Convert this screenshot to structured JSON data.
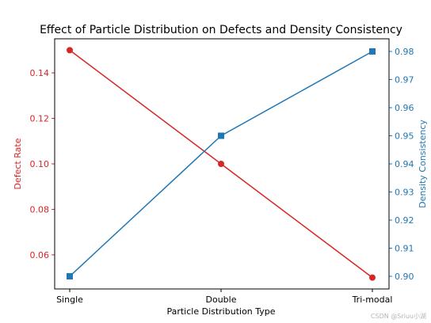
{
  "chart_data": {
    "type": "line",
    "title": "Effect of Particle Distribution on Defects and Density Consistency",
    "xlabel": "Particle Distribution Type",
    "categories": [
      "Single",
      "Double",
      "Tri-modal"
    ],
    "grid": false,
    "legend": "none",
    "left_axis": {
      "label": "Defect Rate",
      "color": "#d62728",
      "ylim": [
        0.045,
        0.155
      ],
      "ticks": [
        0.06,
        0.08,
        0.1,
        0.12,
        0.14
      ],
      "tick_labels": [
        "0.06",
        "0.08",
        "0.10",
        "0.12",
        "0.14"
      ]
    },
    "right_axis": {
      "label": "Density Consistency",
      "color": "#1f77b4",
      "ylim": [
        0.8955,
        0.9845
      ],
      "ticks": [
        0.9,
        0.91,
        0.92,
        0.93,
        0.94,
        0.95,
        0.96,
        0.97,
        0.98
      ],
      "tick_labels": [
        "0.90",
        "0.91",
        "0.92",
        "0.93",
        "0.94",
        "0.95",
        "0.96",
        "0.97",
        "0.98"
      ]
    },
    "series": [
      {
        "axis": "left",
        "color": "#d62728",
        "marker": "circle",
        "values": [
          0.15,
          0.1,
          0.05
        ]
      },
      {
        "axis": "right",
        "color": "#1f77b4",
        "marker": "square",
        "values": [
          0.9,
          0.95,
          0.98
        ]
      }
    ]
  },
  "watermark": "CSDN @Sriuu小湖"
}
